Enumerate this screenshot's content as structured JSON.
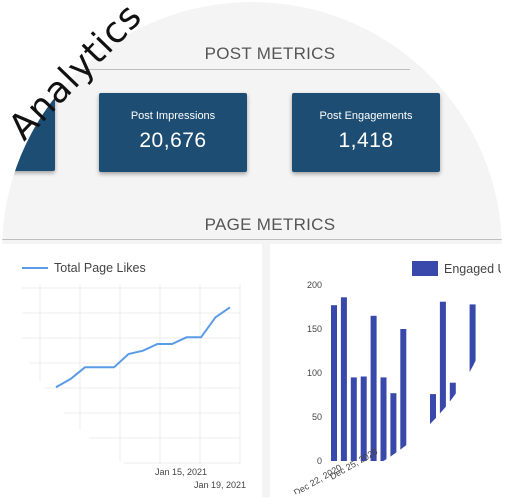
{
  "overlay": {
    "title": "Analytics"
  },
  "post_metrics": {
    "title": "POST METRICS",
    "cards": [
      {
        "label": "Post Impressions",
        "value": "20,676"
      },
      {
        "label": "Post Engagements",
        "value": "1,418"
      }
    ]
  },
  "page_metrics": {
    "title": "PAGE METRICS"
  },
  "colors": {
    "card": "#1d4d73",
    "line": "#5a9be6",
    "bar": "#3949ab"
  },
  "chart_data": [
    {
      "type": "line",
      "legend": [
        "Total Page Likes"
      ],
      "series": [
        {
          "name": "Total Page Likes",
          "values": [
            10,
            15,
            22,
            22,
            22,
            30,
            32,
            36,
            36,
            40,
            40,
            52,
            58
          ]
        }
      ],
      "x_tick_labels": [
        "Jan 15, 2021",
        "Jan 19, 2021"
      ]
    },
    {
      "type": "bar",
      "legend": [
        "Engaged U"
      ],
      "series": [
        {
          "name": "Engaged U",
          "values": [
            177,
            186,
            95,
            96,
            165,
            95,
            77,
            150,
            0,
            0,
            76,
            181,
            89,
            78,
            178
          ]
        }
      ],
      "y_ticks": [
        0,
        50,
        100,
        150,
        200
      ],
      "ylim": [
        0,
        200
      ],
      "x_tick_labels": [
        "Dec 22, 2020",
        "Dec 25, 2020"
      ]
    }
  ]
}
